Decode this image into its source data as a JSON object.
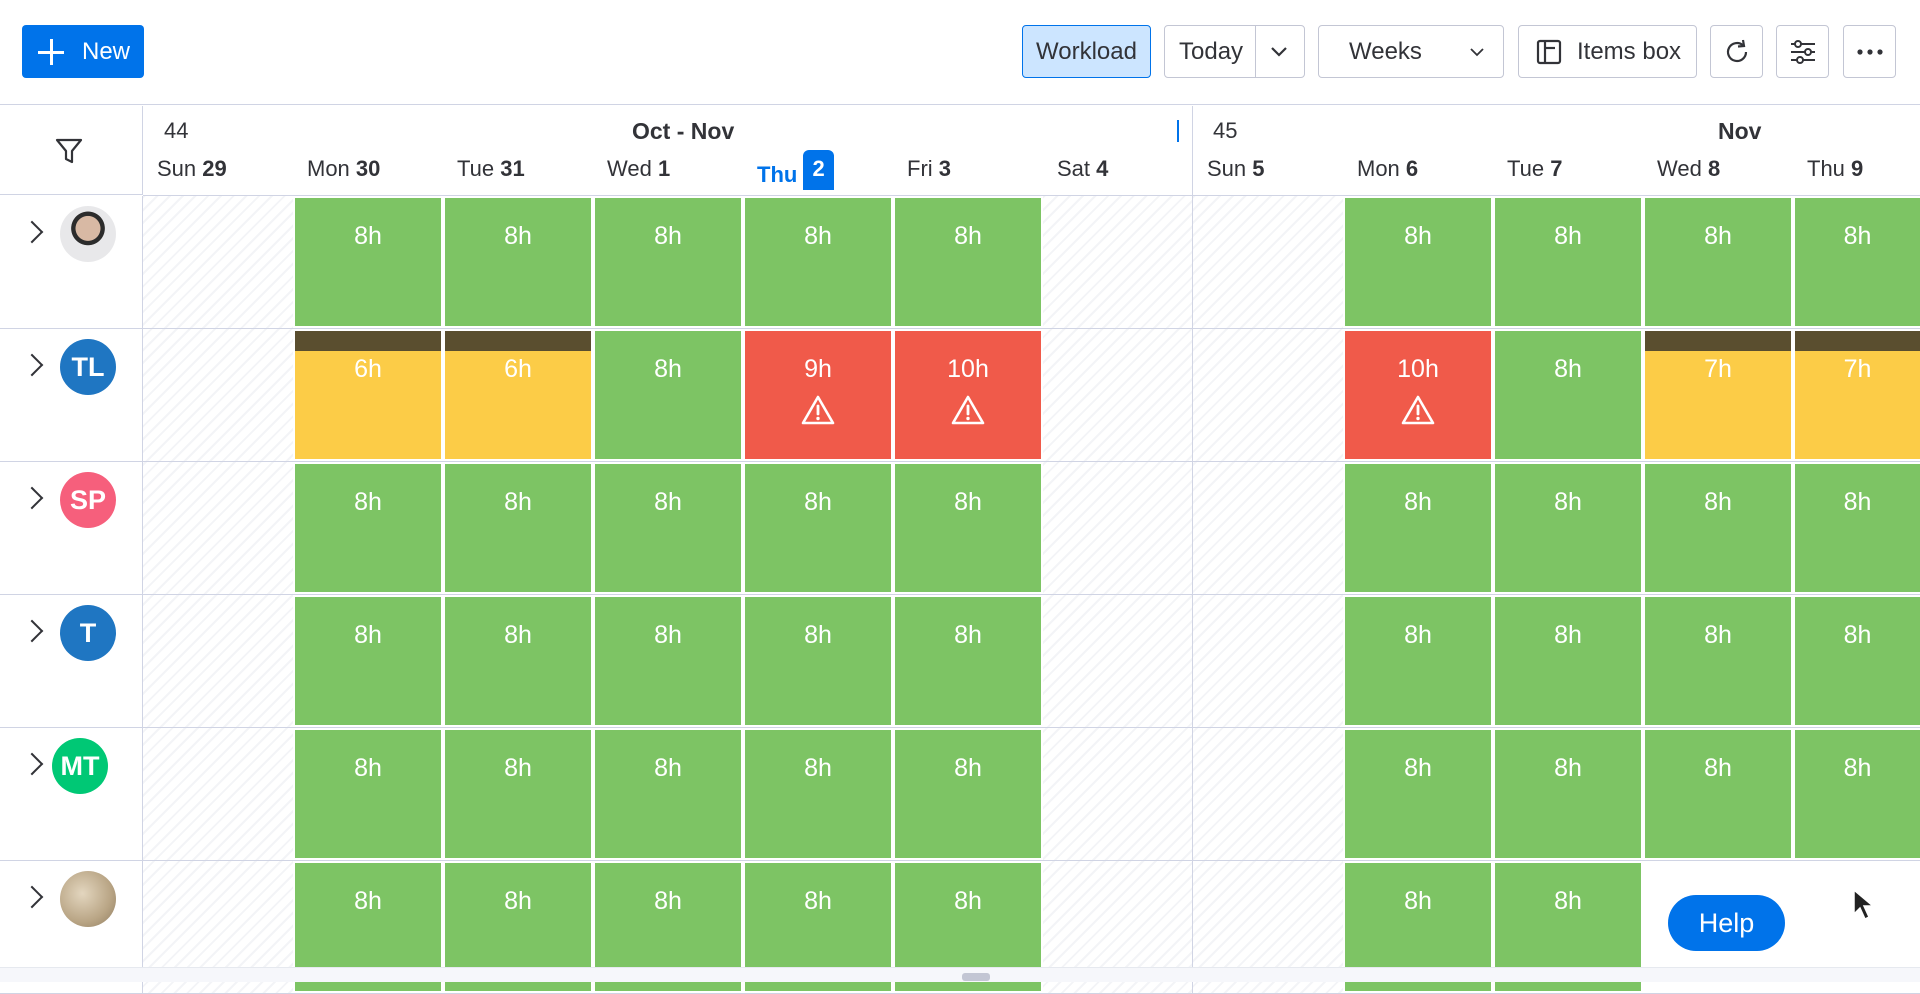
{
  "toolbar": {
    "new_label": "New",
    "workload_label": "Workload",
    "today_label": "Today",
    "weeks_label": "Weeks",
    "items_box_label": "Items box"
  },
  "timeline": {
    "week1": "44",
    "week1_month": "Oct  -  Nov",
    "week2": "45",
    "week2_month": "Nov",
    "days": [
      {
        "dow": "Sun",
        "num": "29"
      },
      {
        "dow": "Mon",
        "num": "30"
      },
      {
        "dow": "Tue",
        "num": "31"
      },
      {
        "dow": "Wed",
        "num": "1"
      },
      {
        "dow": "Thu",
        "num": "2"
      },
      {
        "dow": "Fri",
        "num": "3"
      },
      {
        "dow": "Sat",
        "num": "4"
      },
      {
        "dow": "Sun",
        "num": "5"
      },
      {
        "dow": "Mon",
        "num": "6"
      },
      {
        "dow": "Tue",
        "num": "7"
      },
      {
        "dow": "Wed",
        "num": "8"
      },
      {
        "dow": "Thu",
        "num": "9"
      }
    ]
  },
  "rows": [
    {
      "avatar": "",
      "avatar_color": "#b0b4c0",
      "photo": true,
      "cells": [
        null,
        "8h",
        "8h",
        "8h",
        "8h",
        "8h",
        null,
        null,
        "8h",
        "8h",
        "8h",
        "8h"
      ],
      "status": [
        null,
        "green",
        "green",
        "green",
        "green",
        "green",
        null,
        null,
        "green",
        "green",
        "green",
        "green"
      ]
    },
    {
      "avatar": "TL",
      "avatar_color": "#1f76c2",
      "cells": [
        null,
        "6h",
        "6h",
        "8h",
        "9h",
        "10h",
        null,
        null,
        "10h",
        "8h",
        "7h",
        "7h"
      ],
      "status": [
        null,
        "yellow",
        "yellow",
        "green",
        "red",
        "red",
        null,
        null,
        "red",
        "green",
        "yellow",
        "yellow"
      ]
    },
    {
      "avatar": "SP",
      "avatar_color": "#f65f7c",
      "cells": [
        null,
        "8h",
        "8h",
        "8h",
        "8h",
        "8h",
        null,
        null,
        "8h",
        "8h",
        "8h",
        "8h"
      ],
      "status": [
        null,
        "green",
        "green",
        "green",
        "green",
        "green",
        null,
        null,
        "green",
        "green",
        "green",
        "green"
      ]
    },
    {
      "avatar": "T",
      "avatar_color": "#1f76c2",
      "cells": [
        null,
        "8h",
        "8h",
        "8h",
        "8h",
        "8h",
        null,
        null,
        "8h",
        "8h",
        "8h",
        "8h"
      ],
      "status": [
        null,
        "green",
        "green",
        "green",
        "green",
        "green",
        null,
        null,
        "green",
        "green",
        "green",
        "green"
      ]
    },
    {
      "avatar": "MT",
      "avatar_color": "#00c875",
      "cells": [
        null,
        "8h",
        "8h",
        "8h",
        "8h",
        "8h",
        null,
        null,
        "8h",
        "8h",
        "8h",
        "8h"
      ],
      "status": [
        null,
        "green",
        "green",
        "green",
        "green",
        "green",
        null,
        null,
        "green",
        "green",
        "green",
        "green"
      ]
    },
    {
      "avatar": "",
      "avatar_color": "#c8b89a",
      "photo": true,
      "cells": [
        null,
        "8h",
        "8h",
        "8h",
        "8h",
        "8h",
        null,
        null,
        "8h",
        "8h",
        null,
        null
      ],
      "status": [
        null,
        "green",
        "green",
        "green",
        "green",
        "green",
        null,
        null,
        "green",
        "green",
        null,
        null
      ]
    }
  ],
  "help_label": "Help"
}
